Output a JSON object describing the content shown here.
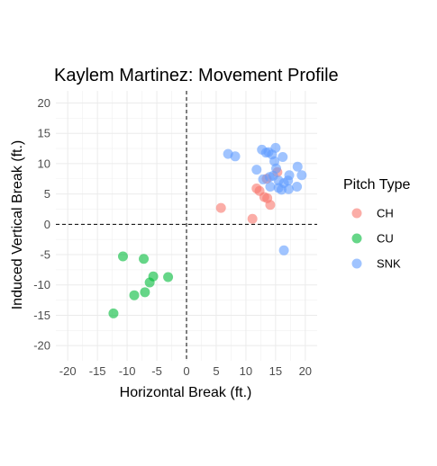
{
  "chart_data": {
    "type": "scatter",
    "title": "Kaylem Martinez: Movement Profile",
    "xlabel": "Horizontal Break (ft.)",
    "ylabel": "Induced Vertical Break (ft.)",
    "xlim": [
      -22,
      22
    ],
    "ylim": [
      -22.5,
      22
    ],
    "xticks": [
      -20,
      -15,
      -10,
      -5,
      0,
      5,
      10,
      15,
      20
    ],
    "yticks": [
      -20,
      -15,
      -10,
      -5,
      0,
      5,
      10,
      15,
      20
    ],
    "grid": true,
    "reference_lines": {
      "x": 0,
      "y": 0,
      "style": "dashed"
    },
    "legend": {
      "title": "Pitch Type",
      "position": "right"
    },
    "series": [
      {
        "name": "CH",
        "color": "#F8766D",
        "points": [
          [
            5.8,
            2.7
          ],
          [
            11.1,
            0.9
          ],
          [
            11.8,
            5.9
          ],
          [
            12.3,
            5.5
          ],
          [
            13.1,
            4.5
          ],
          [
            13.6,
            4.3
          ],
          [
            14.1,
            3.2
          ],
          [
            15.3,
            8.6
          ],
          [
            13.5,
            7.5
          ]
        ]
      },
      {
        "name": "CU",
        "color": "#00BA38",
        "points": [
          [
            -10.7,
            -5.3
          ],
          [
            -7.2,
            -5.7
          ],
          [
            -5.6,
            -8.6
          ],
          [
            -6.2,
            -9.6
          ],
          [
            -3.1,
            -8.7
          ],
          [
            -7.0,
            -11.2
          ],
          [
            -8.8,
            -11.7
          ],
          [
            -12.3,
            -14.7
          ]
        ]
      },
      {
        "name": "SNK",
        "color": "#619CFF",
        "points": [
          [
            7.0,
            11.6
          ],
          [
            8.2,
            11.2
          ],
          [
            12.7,
            12.3
          ],
          [
            13.4,
            11.8
          ],
          [
            13.8,
            11.9
          ],
          [
            15.0,
            12.6
          ],
          [
            14.4,
            11.5
          ],
          [
            14.8,
            10.4
          ],
          [
            16.2,
            11.1
          ],
          [
            11.8,
            9.0
          ],
          [
            15.1,
            9.2
          ],
          [
            17.3,
            8.1
          ],
          [
            18.7,
            9.5
          ],
          [
            19.4,
            8.1
          ],
          [
            12.9,
            7.4
          ],
          [
            14.0,
            7.8
          ],
          [
            14.6,
            8.0
          ],
          [
            15.5,
            7.2
          ],
          [
            16.4,
            6.8
          ],
          [
            17.1,
            7.2
          ],
          [
            14.1,
            6.2
          ],
          [
            15.5,
            6.0
          ],
          [
            16.0,
            5.7
          ],
          [
            17.2,
            5.8
          ],
          [
            18.6,
            6.2
          ],
          [
            16.4,
            -4.3
          ]
        ]
      }
    ]
  }
}
